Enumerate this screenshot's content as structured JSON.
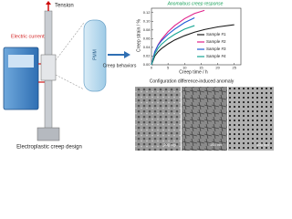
{
  "setup": {
    "tension": "Tension",
    "current": "Electric current",
    "specimen": "PMM",
    "arrow": "Creep behaviors",
    "caption": "Electroplastic creep design"
  },
  "chart_data": {
    "type": "line",
    "subtitle": "Anomalous creep response",
    "xlabel": "Creep time / h",
    "ylabel": "Creep strain / %",
    "x": [
      0,
      1,
      2,
      3,
      5,
      7,
      10,
      13,
      16,
      20,
      25
    ],
    "series": [
      {
        "name": "Sample #1",
        "color": "#1a1a1a",
        "values": [
          0,
          0.02,
          0.03,
          0.037,
          0.048,
          0.057,
          0.067,
          0.075,
          0.081,
          0.087,
          0.092
        ]
      },
      {
        "name": "Sample #2",
        "color": "#e0208a",
        "values": [
          0,
          0.03,
          0.046,
          0.058,
          0.076,
          0.09,
          0.106,
          0.118,
          0.125,
          null,
          null
        ]
      },
      {
        "name": "Sample #3",
        "color": "#1e5bd6",
        "values": [
          0,
          0.03,
          0.045,
          0.055,
          0.07,
          0.082,
          0.097,
          0.108,
          null,
          null,
          null
        ]
      },
      {
        "name": "Sample #4",
        "color": "#17a594",
        "values": [
          0,
          0.025,
          0.038,
          0.047,
          0.06,
          0.07,
          0.082,
          0.09,
          null,
          null,
          null
        ]
      }
    ],
    "xlim": [
      0,
      27
    ],
    "xticks": [
      0,
      5,
      10,
      15,
      20,
      25
    ],
    "ylim": [
      0,
      0.13
    ],
    "yticks": [
      {
        "value": 0,
        "label": "0.00"
      },
      {
        "value": 0.02,
        "label": "0.02"
      },
      {
        "value": 0.04,
        "label": "0.04"
      },
      {
        "value": 0.06,
        "label": "0.06"
      },
      {
        "value": 0.08,
        "label": "0.08"
      },
      {
        "value": 0.1,
        "label": "0.10"
      },
      {
        "value": 0.12,
        "label": "0.12"
      }
    ]
  },
  "micrographs": {
    "title": "Configuration difference-induced anomaly",
    "scales": [
      "200 nm",
      "200 nm",
      "100 nm"
    ]
  }
}
